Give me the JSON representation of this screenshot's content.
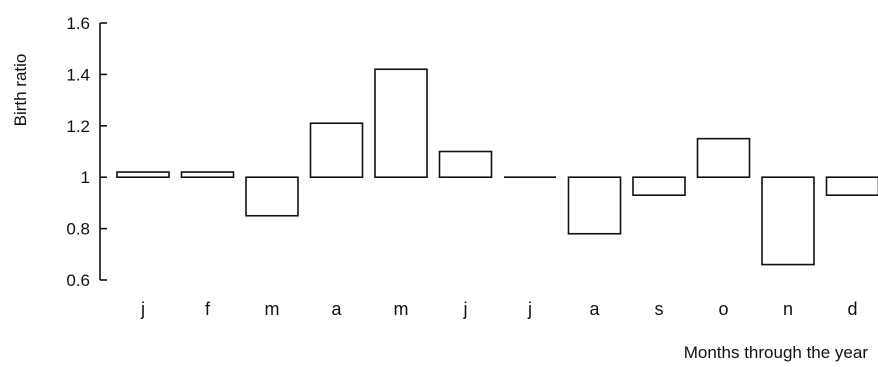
{
  "chart_data": {
    "type": "bar",
    "title": "",
    "xlabel": "Months through the year",
    "ylabel": "Birth ratio",
    "baseline": 1,
    "ylim": [
      0.6,
      1.6
    ],
    "yticks": [
      "0.6",
      "0.8",
      "1",
      "1.2",
      "1.4",
      "1.6"
    ],
    "categories": [
      "j",
      "f",
      "m",
      "a",
      "m",
      "j",
      "j",
      "a",
      "s",
      "o",
      "n",
      "d"
    ],
    "values": [
      1.02,
      1.02,
      0.85,
      1.21,
      1.42,
      1.1,
      1.0,
      0.78,
      0.93,
      1.15,
      0.66,
      0.93
    ],
    "grid": false,
    "bar_fill": "#ffffff",
    "bar_stroke": "#111111"
  }
}
